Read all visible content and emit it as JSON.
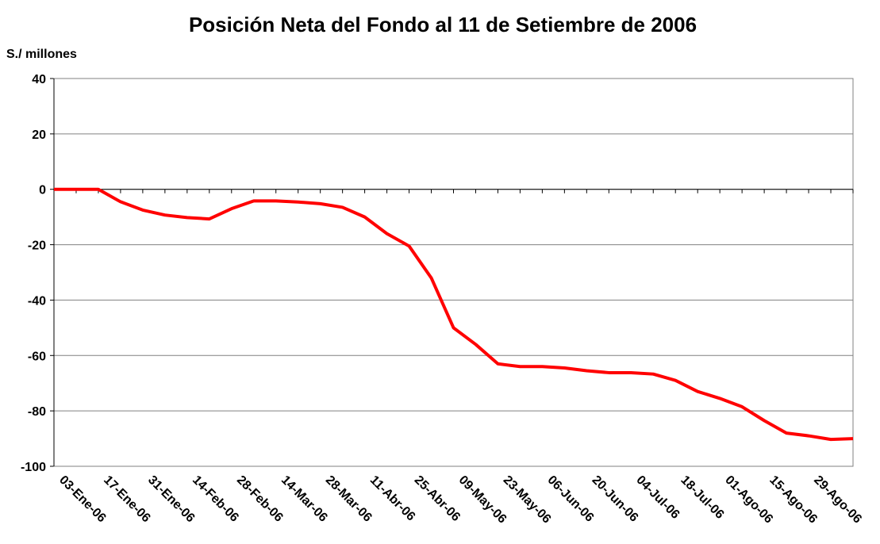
{
  "chart_data": {
    "type": "line",
    "title": "Posición Neta del Fondo al 11 de Setiembre de 2006",
    "y_label": "S./ millones",
    "categories": [
      "03-Ene-06",
      null,
      "17-Ene-06",
      null,
      "31-Ene-06",
      null,
      "14-Feb-06",
      null,
      "28-Feb-06",
      null,
      "14-Mar-06",
      null,
      "28-Mar-06",
      null,
      "11-Abr-06",
      null,
      "25-Abr-06",
      null,
      "09-May-06",
      null,
      "23-May-06",
      null,
      "06-Jun-06",
      null,
      "20-Jun-06",
      null,
      "04-Jul-06",
      null,
      "18-Jul-06",
      null,
      "01-Ago-06",
      null,
      "15-Ago-06",
      null,
      "29-Ago-06",
      null,
      null
    ],
    "series": [
      {
        "color": "#ff0000",
        "values": [
          0,
          0,
          0,
          -4.5,
          -7.5,
          -9.3,
          -10.2,
          -10.7,
          -7,
          -4.2,
          -4.2,
          -4.6,
          -5.2,
          -6.5,
          -10,
          -16,
          -20.5,
          -32,
          -50,
          -56,
          -63,
          -64,
          -64,
          -64.5,
          -65.5,
          -66.2,
          -66.2,
          -66.7,
          -69,
          -73,
          -75.5,
          -78.5,
          -83.5,
          -88,
          -89,
          -90.3,
          -90
        ]
      }
    ],
    "ylim": [
      -100,
      40
    ],
    "yticks": [
      -100,
      -80,
      -60,
      -40,
      -20,
      0,
      20,
      40
    ],
    "grid": true
  }
}
